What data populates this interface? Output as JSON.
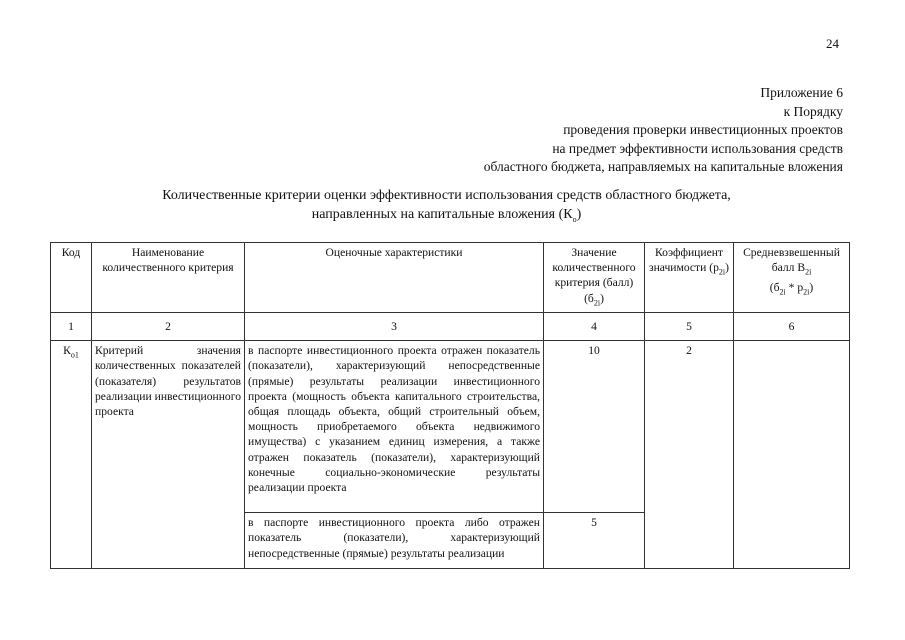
{
  "page_number": "24",
  "appendix": {
    "lines": [
      "Приложение 6",
      "к Порядку",
      "проведения проверки инвестиционных проектов",
      "на предмет эффективности использования средств",
      "областного бюджета, направляемых на капитальные вложения"
    ]
  },
  "title": {
    "line1": "Количественные критерии оценки эффективности использования средств областного бюджета,",
    "line2": "направленных на капитальные вложения (К",
    "line2_sub": "о",
    "line2_end": ")"
  },
  "table": {
    "headers": {
      "col1": "Код",
      "col2": "Наименование количественного критерия",
      "col3": "Оценочные характеристики",
      "col4": "Значение количественного критерия (балл) (б",
      "col4_sub": "2i",
      "col4_end": ")",
      "col5": "Коэффициент значимости (р",
      "col5_sub": "2i",
      "col5_end": ")",
      "col6a": "Средневзвешенный балл В",
      "col6a_sub": "2i",
      "col6b": "(б",
      "col6b_sub": "2i",
      "col6c": " * р",
      "col6c_sub": "2i",
      "col6d": ")"
    },
    "numbers": [
      "1",
      "2",
      "3",
      "4",
      "5",
      "6"
    ],
    "row": {
      "code": "К",
      "code_sub": "о1",
      "name": "Критерий значения количественных показателей (показателя) результатов реализации инвестиционного проекта",
      "coef": "2",
      "items": [
        {
          "text": "в паспорте инвестиционного проекта отражен показатель (показатели), характеризующий непосредственные (прямые) результаты реализации инвестиционного проекта (мощность объекта капитального строительства, общая площадь объекта, общий строительный объем, мощность приобретаемого объекта недвижимого имущества) с указанием единиц измерения, а также отражен показатель (показатели), характеризующий конечные социально-экономические результаты реализации проекта",
          "score": "10"
        },
        {
          "text": "в паспорте инвестиционного проекта либо отражен показатель (показатели), характеризующий непосредственные (прямые) результаты реализации",
          "score": "5"
        }
      ]
    }
  }
}
